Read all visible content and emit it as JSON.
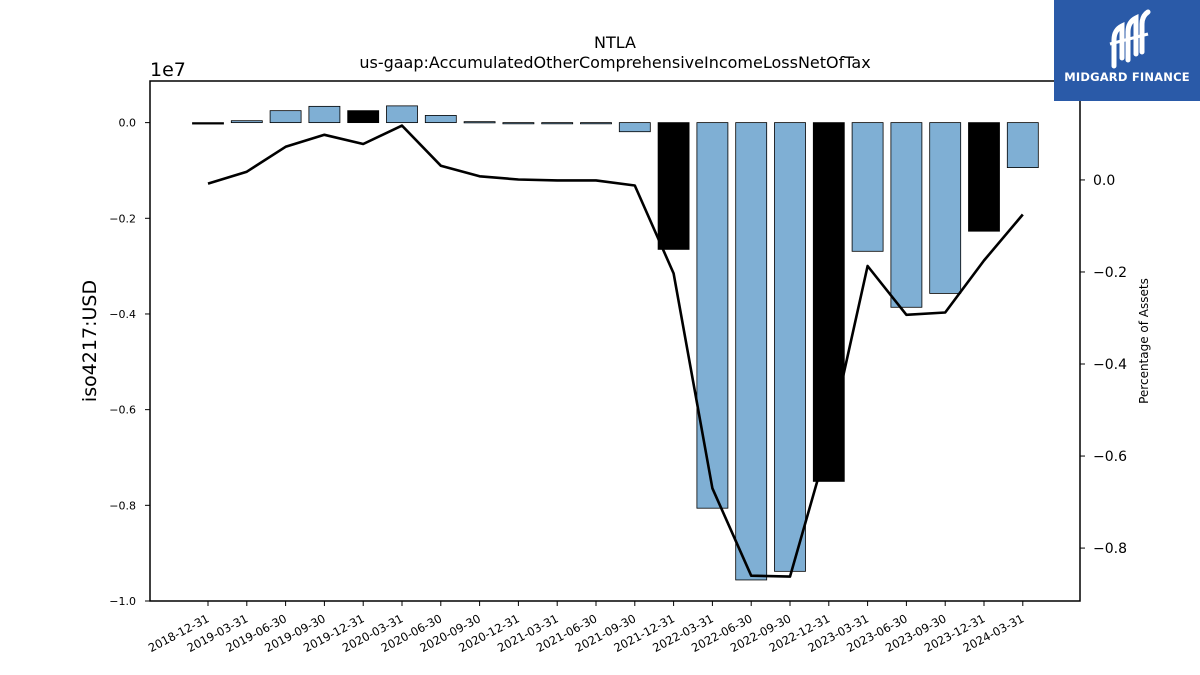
{
  "brand": {
    "name": "MIDGARD FINANCE",
    "logo_color": "#2a5aa8"
  },
  "chart_data": {
    "type": "bar",
    "title": "NTLA",
    "subtitle": "us-gaap:AccumulatedOtherComprehensiveIncomeLossNetOfTax",
    "ylabel": "iso4217:USD",
    "y_offset_label": "1e7",
    "y2label": "Percentage of Assets",
    "categories": [
      "2018-12-31",
      "2019-03-31",
      "2019-06-30",
      "2019-09-30",
      "2019-12-31",
      "2020-03-31",
      "2020-06-30",
      "2020-09-30",
      "2020-12-31",
      "2021-03-31",
      "2021-06-30",
      "2021-09-30",
      "2021-12-31",
      "2022-03-31",
      "2022-06-30",
      "2022-09-30",
      "2022-12-31",
      "2023-03-31",
      "2023-06-30",
      "2023-09-30",
      "2023-12-31",
      "2024-03-31"
    ],
    "series": [
      {
        "type": "bar",
        "values": [
          -30000,
          40000,
          250000,
          340000,
          250000,
          350000,
          150000,
          20000,
          -10000,
          -10000,
          -10000,
          -190000,
          -2650000,
          -8060000,
          -9560000,
          -9380000,
          -7500000,
          -2690000,
          -3860000,
          -3570000,
          -2270000,
          -940000
        ],
        "colors": [
          "#000000",
          "#7fafd4",
          "#7fafd4",
          "#7fafd4",
          "#000000",
          "#7fafd4",
          "#7fafd4",
          "#7fafd4",
          "#7fafd4",
          "#7fafd4",
          "#7fafd4",
          "#7fafd4",
          "#000000",
          "#7fafd4",
          "#7fafd4",
          "#7fafd4",
          "#000000",
          "#7fafd4",
          "#7fafd4",
          "#7fafd4",
          "#000000",
          "#7fafd4"
        ]
      },
      {
        "type": "line",
        "axis": "right",
        "values": [
          -0.008,
          0.018,
          0.072,
          0.098,
          0.078,
          0.118,
          0.031,
          0.008,
          0.001,
          -0.001,
          -0.001,
          -0.012,
          -0.203,
          -0.67,
          -0.86,
          -0.862,
          -0.567,
          -0.187,
          -0.293,
          -0.288,
          -0.175,
          -0.075
        ],
        "color": "#000000"
      }
    ],
    "ylim": [
      -1.0,
      0.087
    ],
    "yticks": [
      "0.0",
      "−0.2",
      "−0.4",
      "−0.6",
      "−0.8",
      "−1.0"
    ],
    "y2lim": [
      -0.915,
      0.215
    ],
    "y2ticks": [
      "0.0",
      "−0.2",
      "−0.4",
      "−0.6",
      "−0.8"
    ],
    "grid": false,
    "legend": "none"
  }
}
